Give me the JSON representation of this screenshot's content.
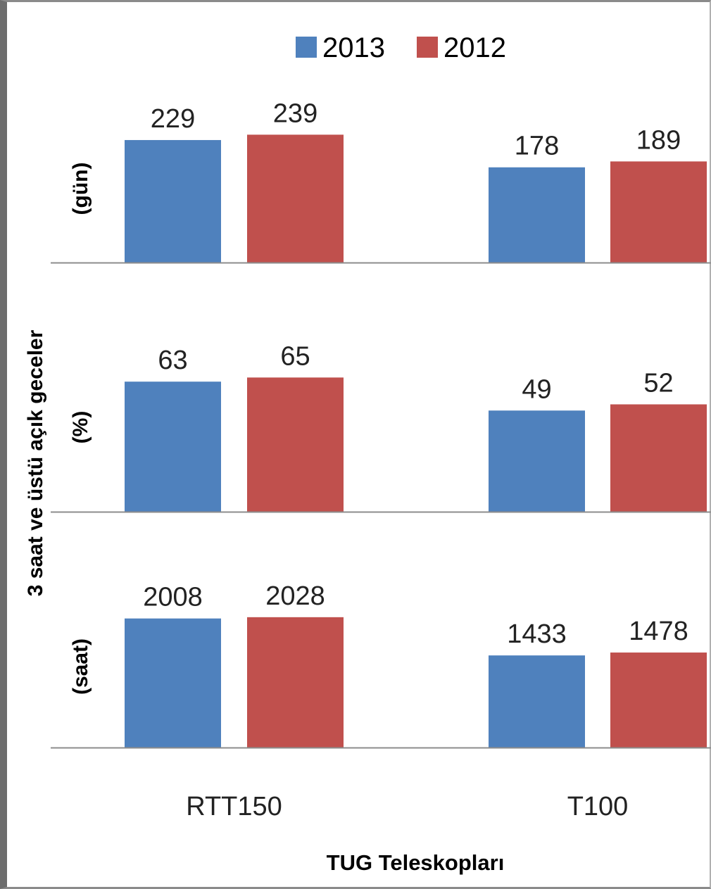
{
  "chart_data": {
    "type": "bar",
    "ylabel": "3 saat ve üstü açık geceler",
    "xlabel": "TUG Teleskopları",
    "categories": [
      "RTT150",
      "T100"
    ],
    "legend": {
      "placement": "top",
      "entries": [
        {
          "name": "2013",
          "color": "#4f81bd"
        },
        {
          "name": "2012",
          "color": "#c0504d"
        }
      ]
    },
    "grid": false,
    "panels": [
      {
        "label": "(gün)",
        "ylim": [
          0,
          250
        ],
        "series": [
          {
            "name": "2013",
            "values": [
              229,
              178
            ]
          },
          {
            "name": "2012",
            "values": [
              239,
              189
            ]
          }
        ]
      },
      {
        "label": "(%)",
        "ylim": [
          0,
          75
        ],
        "series": [
          {
            "name": "2013",
            "values": [
              63,
              49
            ]
          },
          {
            "name": "2012",
            "values": [
              65,
              52
            ]
          }
        ]
      },
      {
        "label": "(saat)",
        "ylim": [
          0,
          2300
        ],
        "series": [
          {
            "name": "2013",
            "values": [
              2008,
              1433
            ]
          },
          {
            "name": "2012",
            "values": [
              2028,
              1478
            ]
          }
        ]
      }
    ]
  }
}
